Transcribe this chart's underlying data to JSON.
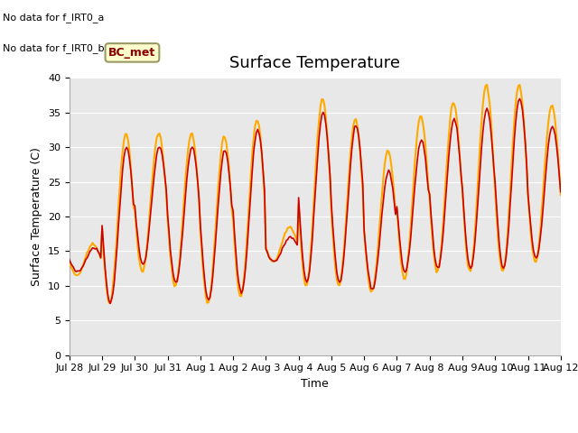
{
  "title": "Surface Temperature",
  "xlabel": "Time",
  "ylabel": "Surface Temperature (C)",
  "ylim": [
    0,
    40
  ],
  "yticks": [
    0,
    5,
    10,
    15,
    20,
    25,
    30,
    35,
    40
  ],
  "bg_color": "#e8e8e8",
  "tower_color": "#cc0000",
  "arable_color": "#ffaa00",
  "text_above": [
    "No data for f_IRT0_a",
    "No data for f_IRT0_b"
  ],
  "legend_label_box": "BC_met",
  "xtick_labels": [
    "Jul 28",
    "Jul 29",
    "Jul 30",
    "Jul 31",
    "Aug 1",
    "Aug 2",
    "Aug 3",
    "Aug 4",
    "Aug 5",
    "Aug 6",
    "Aug 7",
    "Aug 8",
    "Aug 9",
    "Aug 10",
    "Aug 11",
    "Aug 12"
  ],
  "base_tower": [
    12.0,
    7.5,
    13.0,
    10.5,
    8.0,
    9.0,
    13.5,
    10.5,
    10.5,
    9.5,
    12.0,
    12.5,
    12.5,
    12.5,
    14.0
  ],
  "peak_tower": [
    15.5,
    30.0,
    30.0,
    30.0,
    29.5,
    32.5,
    17.0,
    35.0,
    33.0,
    26.5,
    31.0,
    34.0,
    35.5,
    37.0,
    33.0
  ],
  "base_arable": [
    11.5,
    7.5,
    12.0,
    10.0,
    7.5,
    8.5,
    13.5,
    10.0,
    10.0,
    9.0,
    11.0,
    12.0,
    12.0,
    12.0,
    13.5
  ],
  "peak_arable": [
    16.0,
    32.0,
    32.0,
    32.0,
    31.5,
    34.0,
    18.5,
    37.0,
    34.0,
    29.5,
    34.5,
    36.5,
    39.0,
    39.0,
    36.0
  ],
  "figsize": [
    6.4,
    4.8
  ],
  "dpi": 100
}
